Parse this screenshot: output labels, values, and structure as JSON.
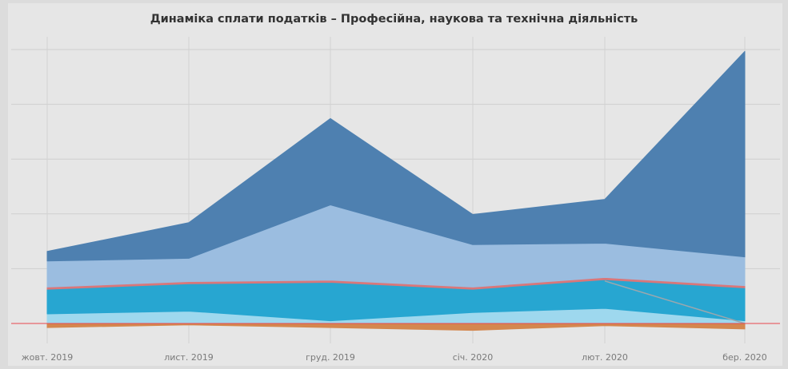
{
  "chart_data": {
    "type": "area",
    "title": "Динаміка сплати податків – Професійна, наукова та технічна діяльність",
    "categories": [
      "жовт. 2019",
      "лист. 2019",
      "груд. 2019",
      "січ. 2020",
      "лют. 2020",
      "бер. 2020"
    ],
    "stacked": true,
    "grid": true,
    "ylim": [
      -10,
      100
    ],
    "zero_line_color": "#e8474f",
    "series": [
      {
        "color": "#d4874f",
        "values": [
          -1.5,
          -0.5,
          -1.5,
          -2.5,
          -0.8,
          -2.0
        ],
        "negative": true
      },
      {
        "color": "#9ed8ee",
        "values": [
          3.5,
          4.5,
          1.0,
          4.0,
          5.5,
          1.0
        ]
      },
      {
        "color": "#27a6d1",
        "values": [
          9.0,
          10.0,
          14.0,
          8.5,
          10.5,
          12.0
        ]
      },
      {
        "color": "#d9777a",
        "values": [
          0.8,
          0.8,
          0.8,
          0.8,
          0.8,
          0.8
        ]
      },
      {
        "color": "#9bbde0",
        "values": [
          9.5,
          8.5,
          27.5,
          15.5,
          12.5,
          10.5
        ]
      },
      {
        "color": "#4e80b0",
        "values": [
          3.5,
          13.0,
          31.5,
          11.0,
          16.0,
          75.0
        ]
      }
    ],
    "overlay_line": {
      "color": "#9aa7ae",
      "from_category": "лют. 2020",
      "to_category": "бер. 2020",
      "values": [
        15.5,
        0.0
      ]
    }
  }
}
